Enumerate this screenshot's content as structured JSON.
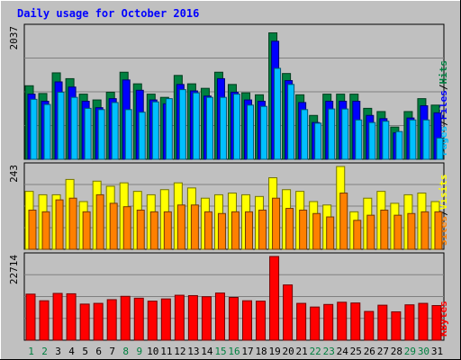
{
  "chart_data": {
    "type": "bar",
    "title": "Daily usage for October 2016",
    "colors": {
      "background": "#c0c0c0",
      "title": "#0000ff",
      "hits": "#008040",
      "files": "#0000ff",
      "pages": "#00c0ff",
      "visits": "#ffff00",
      "sites": "#ff8000",
      "kbytes": "#ff0000",
      "weekday_label": "#008040",
      "weekend_label": "#008040",
      "day_label_default": "#008040"
    },
    "categories": [
      "1",
      "2",
      "3",
      "4",
      "5",
      "6",
      "7",
      "8",
      "9",
      "10",
      "11",
      "12",
      "13",
      "14",
      "15",
      "16",
      "17",
      "18",
      "19",
      "20",
      "21",
      "22",
      "23",
      "24",
      "25",
      "26",
      "27",
      "28",
      "29",
      "30",
      "31"
    ],
    "day_label_colors": [
      "#008040",
      "#008040",
      "#000000",
      "#000000",
      "#000000",
      "#000000",
      "#000000",
      "#008040",
      "#008040",
      "#000000",
      "#000000",
      "#000000",
      "#000000",
      "#000000",
      "#008040",
      "#008040",
      "#000000",
      "#000000",
      "#000000",
      "#000000",
      "#000000",
      "#008040",
      "#008040",
      "#000000",
      "#000000",
      "#000000",
      "#000000",
      "#000000",
      "#008040",
      "#008040",
      "#000000"
    ],
    "panels": [
      {
        "name": "top",
        "ymax_label": "2037",
        "ymax": 2037,
        "axis_label": [
          "Pages",
          "/",
          "Files",
          "/",
          "Hits"
        ],
        "axis_label_colors": [
          "#00c0ff",
          "#000000",
          "#0000ff",
          "#000000",
          "#008040"
        ],
        "series": [
          {
            "name": "Hits",
            "values": [
              1140,
              1020,
              1340,
              1250,
              1010,
              920,
              1040,
              1350,
              1170,
              1010,
              960,
              1300,
              1170,
              1100,
              1350,
              1160,
              1030,
              1000,
              1960,
              1330,
              1000,
              680,
              1010,
              1010,
              1010,
              790,
              740,
              500,
              740,
              940,
              840
            ]
          },
          {
            "name": "Files",
            "values": [
              1010,
              900,
              1200,
              1120,
              900,
              800,
              940,
              1230,
              1070,
              920,
              860,
              1160,
              1060,
              980,
              1250,
              1040,
              920,
              900,
              1830,
              1220,
              880,
              570,
              900,
              900,
              900,
              680,
              630,
              410,
              640,
              830,
              720
            ]
          },
          {
            "name": "Pages",
            "values": [
              930,
              850,
              1040,
              960,
              790,
              770,
              880,
              770,
              730,
              890,
              940,
              1080,
              1030,
              960,
              960,
              1010,
              840,
              820,
              1410,
              1160,
              770,
              560,
              780,
              780,
              610,
              570,
              590,
              430,
              610,
              610,
              330
            ]
          }
        ]
      },
      {
        "name": "middle",
        "ymax_label": "243",
        "ymax": 243,
        "axis_label": [
          "Sites",
          "/",
          "Visits"
        ],
        "axis_label_colors": [
          "#ff8000",
          "#000000",
          "#ffff00"
        ],
        "series": [
          {
            "name": "Visits",
            "values": [
              170,
              160,
              160,
              205,
              140,
              200,
              185,
              195,
              170,
              160,
              175,
              195,
              180,
              150,
              160,
              165,
              160,
              155,
              210,
              175,
              170,
              140,
              130,
              243,
              110,
              150,
              170,
              135,
              160,
              165,
              140
            ]
          },
          {
            "name": "Sites",
            "values": [
              115,
              110,
              145,
              150,
              110,
              160,
              135,
              125,
              115,
              110,
              110,
              130,
              130,
              110,
              105,
              110,
              110,
              115,
              150,
              120,
              115,
              105,
              95,
              165,
              85,
              100,
              115,
              100,
              105,
              110,
              110
            ]
          }
        ]
      },
      {
        "name": "bottom",
        "ymax_label": "22714",
        "ymax": 22714,
        "axis_label": [
          "KBytes"
        ],
        "axis_label_colors": [
          "#ff0000"
        ],
        "series": [
          {
            "name": "KBytes",
            "values": [
              12500,
              10700,
              12700,
              12600,
              9800,
              10000,
              11000,
              11900,
              11400,
              10600,
              11200,
              12200,
              12100,
              11800,
              12800,
              11600,
              10700,
              10600,
              22714,
              15000,
              10000,
              9000,
              9700,
              10300,
              10100,
              7800,
              9500,
              7700,
              9600,
              10000,
              9400
            ]
          }
        ]
      }
    ]
  }
}
